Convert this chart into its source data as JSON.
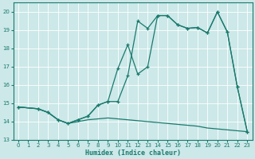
{
  "xlabel": "Humidex (Indice chaleur)",
  "bg_color": "#cce8e8",
  "grid_color": "#b8d8d8",
  "line_color": "#1a7a6e",
  "xlim": [
    -0.5,
    23.5
  ],
  "ylim": [
    13.0,
    20.5
  ],
  "yticks": [
    13,
    14,
    15,
    16,
    17,
    18,
    19,
    20
  ],
  "xticks": [
    0,
    1,
    2,
    3,
    4,
    5,
    6,
    7,
    8,
    9,
    10,
    11,
    12,
    13,
    14,
    15,
    16,
    17,
    18,
    19,
    20,
    21,
    22,
    23
  ],
  "line1_x": [
    0,
    2,
    3,
    4,
    5,
    6,
    7,
    8,
    9,
    10,
    11,
    12,
    13,
    14,
    15,
    16,
    17,
    18,
    19,
    20,
    21,
    22,
    23
  ],
  "line1_y": [
    14.8,
    14.7,
    14.5,
    14.1,
    13.9,
    14.1,
    14.3,
    14.9,
    15.1,
    16.9,
    18.2,
    16.6,
    17.0,
    19.8,
    19.8,
    19.3,
    19.1,
    19.15,
    18.85,
    20.0,
    18.9,
    15.9,
    13.45
  ],
  "line2_x": [
    0,
    2,
    3,
    4,
    5,
    6,
    7,
    8,
    9,
    10,
    11,
    12,
    13,
    14,
    15,
    16,
    17,
    18,
    19,
    20,
    21,
    22,
    23
  ],
  "line2_y": [
    14.8,
    14.7,
    14.5,
    14.1,
    13.9,
    14.1,
    14.3,
    14.9,
    15.1,
    15.1,
    16.5,
    19.5,
    19.1,
    19.8,
    19.8,
    19.3,
    19.1,
    19.15,
    18.85,
    20.0,
    18.9,
    15.9,
    13.45
  ],
  "line3_x": [
    0,
    2,
    3,
    4,
    5,
    6,
    7,
    8,
    9,
    10,
    11,
    12,
    13,
    14,
    15,
    16,
    17,
    18,
    19,
    20,
    21,
    22,
    23
  ],
  "line3_y": [
    14.8,
    14.7,
    14.5,
    14.1,
    13.9,
    14.0,
    14.1,
    14.15,
    14.2,
    14.15,
    14.1,
    14.05,
    14.0,
    13.95,
    13.9,
    13.85,
    13.8,
    13.75,
    13.65,
    13.6,
    13.55,
    13.5,
    13.45
  ]
}
